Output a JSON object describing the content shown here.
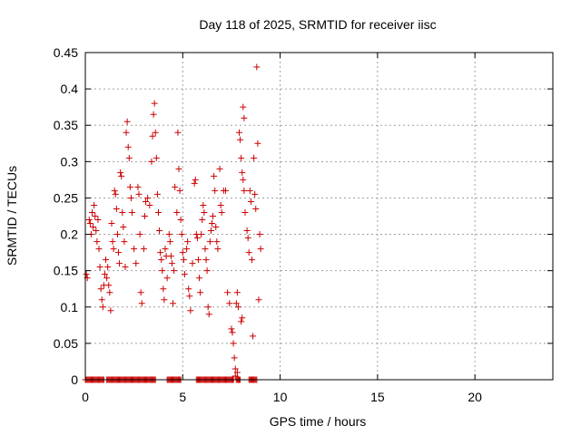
{
  "chart_data": {
    "type": "scatter",
    "title": "Day 118 of 2025, SRMTID for receiver iisc",
    "xlabel": "GPS time / hours",
    "ylabel": "SRMTID / TECUs",
    "xlim": [
      0,
      24
    ],
    "ylim": [
      0,
      0.45
    ],
    "x_ticks": [
      0,
      5,
      10,
      15,
      20
    ],
    "x_tick_labels": [
      "0",
      "5",
      "10",
      "15",
      "20"
    ],
    "y_ticks": [
      0,
      0.05,
      0.1,
      0.15,
      0.2,
      0.25,
      0.3,
      0.35,
      0.4,
      0.45
    ],
    "y_tick_labels": [
      "0",
      "0.05",
      "0.1",
      "0.15",
      "0.2",
      "0.25",
      "0.3",
      "0.35",
      "0.4",
      "0.45"
    ],
    "grid": true,
    "marker": "plus",
    "color": "#cc0000",
    "series": [
      {
        "name": "",
        "points": [
          [
            0.05,
            0.145
          ],
          [
            0.1,
            0.14
          ],
          [
            0.2,
            0.22
          ],
          [
            0.25,
            0.215
          ],
          [
            0.3,
            0.2
          ],
          [
            0.35,
            0.23
          ],
          [
            0.4,
            0.21
          ],
          [
            0.45,
            0.24
          ],
          [
            0.5,
            0.225
          ],
          [
            0.55,
            0.205
          ],
          [
            0.6,
            0.19
          ],
          [
            0.65,
            0.22
          ],
          [
            0.7,
            0.18
          ],
          [
            0.75,
            0.155
          ],
          [
            0.8,
            0.125
          ],
          [
            0.85,
            0.11
          ],
          [
            0.9,
            0.1
          ],
          [
            0.95,
            0.13
          ],
          [
            1.0,
            0.145
          ],
          [
            1.05,
            0.165
          ],
          [
            1.1,
            0.14
          ],
          [
            1.15,
            0.155
          ],
          [
            1.2,
            0.13
          ],
          [
            1.25,
            0.12
          ],
          [
            1.3,
            0.095
          ],
          [
            1.35,
            0.215
          ],
          [
            1.4,
            0.19
          ],
          [
            1.45,
            0.18
          ],
          [
            1.5,
            0.26
          ],
          [
            1.55,
            0.255
          ],
          [
            1.6,
            0.235
          ],
          [
            1.65,
            0.2
          ],
          [
            1.7,
            0.175
          ],
          [
            1.75,
            0.16
          ],
          [
            1.8,
            0.285
          ],
          [
            1.85,
            0.28
          ],
          [
            1.9,
            0.23
          ],
          [
            1.95,
            0.21
          ],
          [
            2.0,
            0.19
          ],
          [
            2.05,
            0.155
          ],
          [
            2.1,
            0.34
          ],
          [
            2.15,
            0.355
          ],
          [
            2.2,
            0.32
          ],
          [
            2.25,
            0.305
          ],
          [
            2.3,
            0.265
          ],
          [
            2.35,
            0.25
          ],
          [
            2.4,
            0.23
          ],
          [
            2.5,
            0.18
          ],
          [
            2.6,
            0.16
          ],
          [
            2.7,
            0.265
          ],
          [
            2.75,
            0.255
          ],
          [
            2.8,
            0.2
          ],
          [
            2.85,
            0.12
          ],
          [
            2.9,
            0.105
          ],
          [
            3.0,
            0.18
          ],
          [
            3.05,
            0.225
          ],
          [
            3.1,
            0.245
          ],
          [
            3.2,
            0.25
          ],
          [
            3.3,
            0.24
          ],
          [
            3.4,
            0.3
          ],
          [
            3.45,
            0.335
          ],
          [
            3.5,
            0.365
          ],
          [
            3.55,
            0.38
          ],
          [
            3.6,
            0.34
          ],
          [
            3.65,
            0.305
          ],
          [
            3.7,
            0.255
          ],
          [
            3.75,
            0.23
          ],
          [
            3.8,
            0.205
          ],
          [
            3.85,
            0.175
          ],
          [
            3.9,
            0.165
          ],
          [
            3.95,
            0.15
          ],
          [
            4.0,
            0.125
          ],
          [
            4.05,
            0.11
          ],
          [
            4.1,
            0.18
          ],
          [
            4.15,
            0.17
          ],
          [
            4.2,
            0.14
          ],
          [
            4.3,
            0.2
          ],
          [
            4.35,
            0.19
          ],
          [
            4.4,
            0.17
          ],
          [
            4.45,
            0.16
          ],
          [
            4.5,
            0.105
          ],
          [
            4.55,
            0.15
          ],
          [
            4.6,
            0.265
          ],
          [
            4.7,
            0.23
          ],
          [
            4.75,
            0.34
          ],
          [
            4.8,
            0.29
          ],
          [
            4.85,
            0.26
          ],
          [
            4.9,
            0.22
          ],
          [
            4.95,
            0.2
          ],
          [
            5.0,
            0.175
          ],
          [
            5.05,
            0.165
          ],
          [
            5.1,
            0.145
          ],
          [
            5.2,
            0.18
          ],
          [
            5.25,
            0.19
          ],
          [
            5.3,
            0.125
          ],
          [
            5.35,
            0.115
          ],
          [
            5.4,
            0.095
          ],
          [
            5.5,
            0.16
          ],
          [
            5.6,
            0.27
          ],
          [
            5.65,
            0.275
          ],
          [
            5.7,
            0.2
          ],
          [
            5.75,
            0.195
          ],
          [
            5.8,
            0.165
          ],
          [
            5.85,
            0.14
          ],
          [
            5.9,
            0.12
          ],
          [
            5.95,
            0.2
          ],
          [
            6.0,
            0.22
          ],
          [
            6.05,
            0.24
          ],
          [
            6.1,
            0.23
          ],
          [
            6.15,
            0.18
          ],
          [
            6.2,
            0.165
          ],
          [
            6.25,
            0.15
          ],
          [
            6.3,
            0.1
          ],
          [
            6.35,
            0.09
          ],
          [
            6.4,
            0.19
          ],
          [
            6.45,
            0.205
          ],
          [
            6.5,
            0.215
          ],
          [
            6.55,
            0.225
          ],
          [
            6.6,
            0.28
          ],
          [
            6.65,
            0.26
          ],
          [
            6.7,
            0.21
          ],
          [
            6.75,
            0.19
          ],
          [
            6.8,
            0.18
          ],
          [
            6.9,
            0.29
          ],
          [
            6.95,
            0.24
          ],
          [
            7.0,
            0.23
          ],
          [
            7.1,
            0.26
          ],
          [
            7.2,
            0.26
          ],
          [
            7.3,
            0.12
          ],
          [
            7.4,
            0.105
          ],
          [
            7.5,
            0.07
          ],
          [
            7.55,
            0.065
          ],
          [
            7.6,
            0.05
          ],
          [
            7.65,
            0.03
          ],
          [
            7.7,
            0.015
          ],
          [
            7.75,
            0.105
          ],
          [
            7.8,
            0.12
          ],
          [
            7.85,
            0.1
          ],
          [
            7.9,
            0.34
          ],
          [
            7.95,
            0.33
          ],
          [
            8.0,
            0.305
          ],
          [
            8.05,
            0.285
          ],
          [
            8.1,
            0.275
          ],
          [
            8.15,
            0.26
          ],
          [
            8.2,
            0.23
          ],
          [
            8.3,
            0.205
          ],
          [
            8.35,
            0.195
          ],
          [
            8.4,
            0.175
          ],
          [
            8.45,
            0.26
          ],
          [
            8.5,
            0.245
          ],
          [
            8.55,
            0.165
          ],
          [
            8.6,
            0.06
          ],
          [
            8.65,
            0.305
          ],
          [
            8.7,
            0.255
          ],
          [
            8.75,
            0.235
          ],
          [
            8.8,
            0.43
          ],
          [
            8.85,
            0.325
          ],
          [
            8.9,
            0.11
          ],
          [
            8.95,
            0.2
          ],
          [
            9.0,
            0.18
          ],
          [
            8.1,
            0.375
          ],
          [
            8.15,
            0.36
          ],
          [
            8.0,
            0.08
          ],
          [
            8.05,
            0.085
          ],
          [
            7.6,
            0.0
          ],
          [
            7.7,
            0.005
          ],
          [
            7.8,
            0.01
          ]
        ]
      }
    ],
    "zero_clusters": [
      [
        0.0,
        0.95
      ],
      [
        1.1,
        3.6
      ],
      [
        4.2,
        4.9
      ],
      [
        5.7,
        7.6
      ],
      [
        7.75,
        7.95
      ],
      [
        8.4,
        8.8
      ]
    ]
  }
}
